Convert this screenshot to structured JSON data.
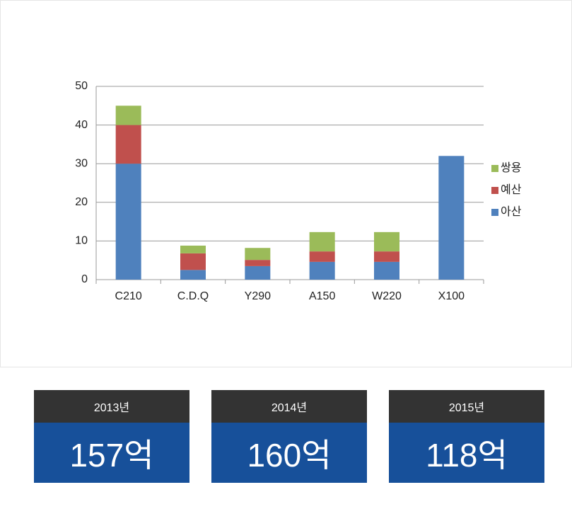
{
  "chart_data": {
    "type": "stacked-bar",
    "categories": [
      "C210",
      "C.D.Q",
      "Y290",
      "A150",
      "W220",
      "X100"
    ],
    "series": [
      {
        "name": "아산",
        "color": "#4f81bd",
        "values": [
          30,
          2.5,
          3.5,
          4.6,
          4.6,
          32
        ]
      },
      {
        "name": "예산",
        "color": "#c0504d",
        "values": [
          10,
          4.3,
          1.6,
          2.7,
          2.7,
          0
        ]
      },
      {
        "name": "쌍용",
        "color": "#9bbb59",
        "values": [
          5,
          2,
          3.1,
          5,
          5,
          0
        ]
      }
    ],
    "ylim": [
      0,
      50
    ],
    "yticks": [
      0,
      10,
      20,
      30,
      40,
      50
    ],
    "grid": true,
    "legend": "right"
  },
  "cards": [
    {
      "year": "2013년",
      "amount": "157억"
    },
    {
      "year": "2014년",
      "amount": "160억"
    },
    {
      "year": "2015년",
      "amount": "118억"
    }
  ]
}
